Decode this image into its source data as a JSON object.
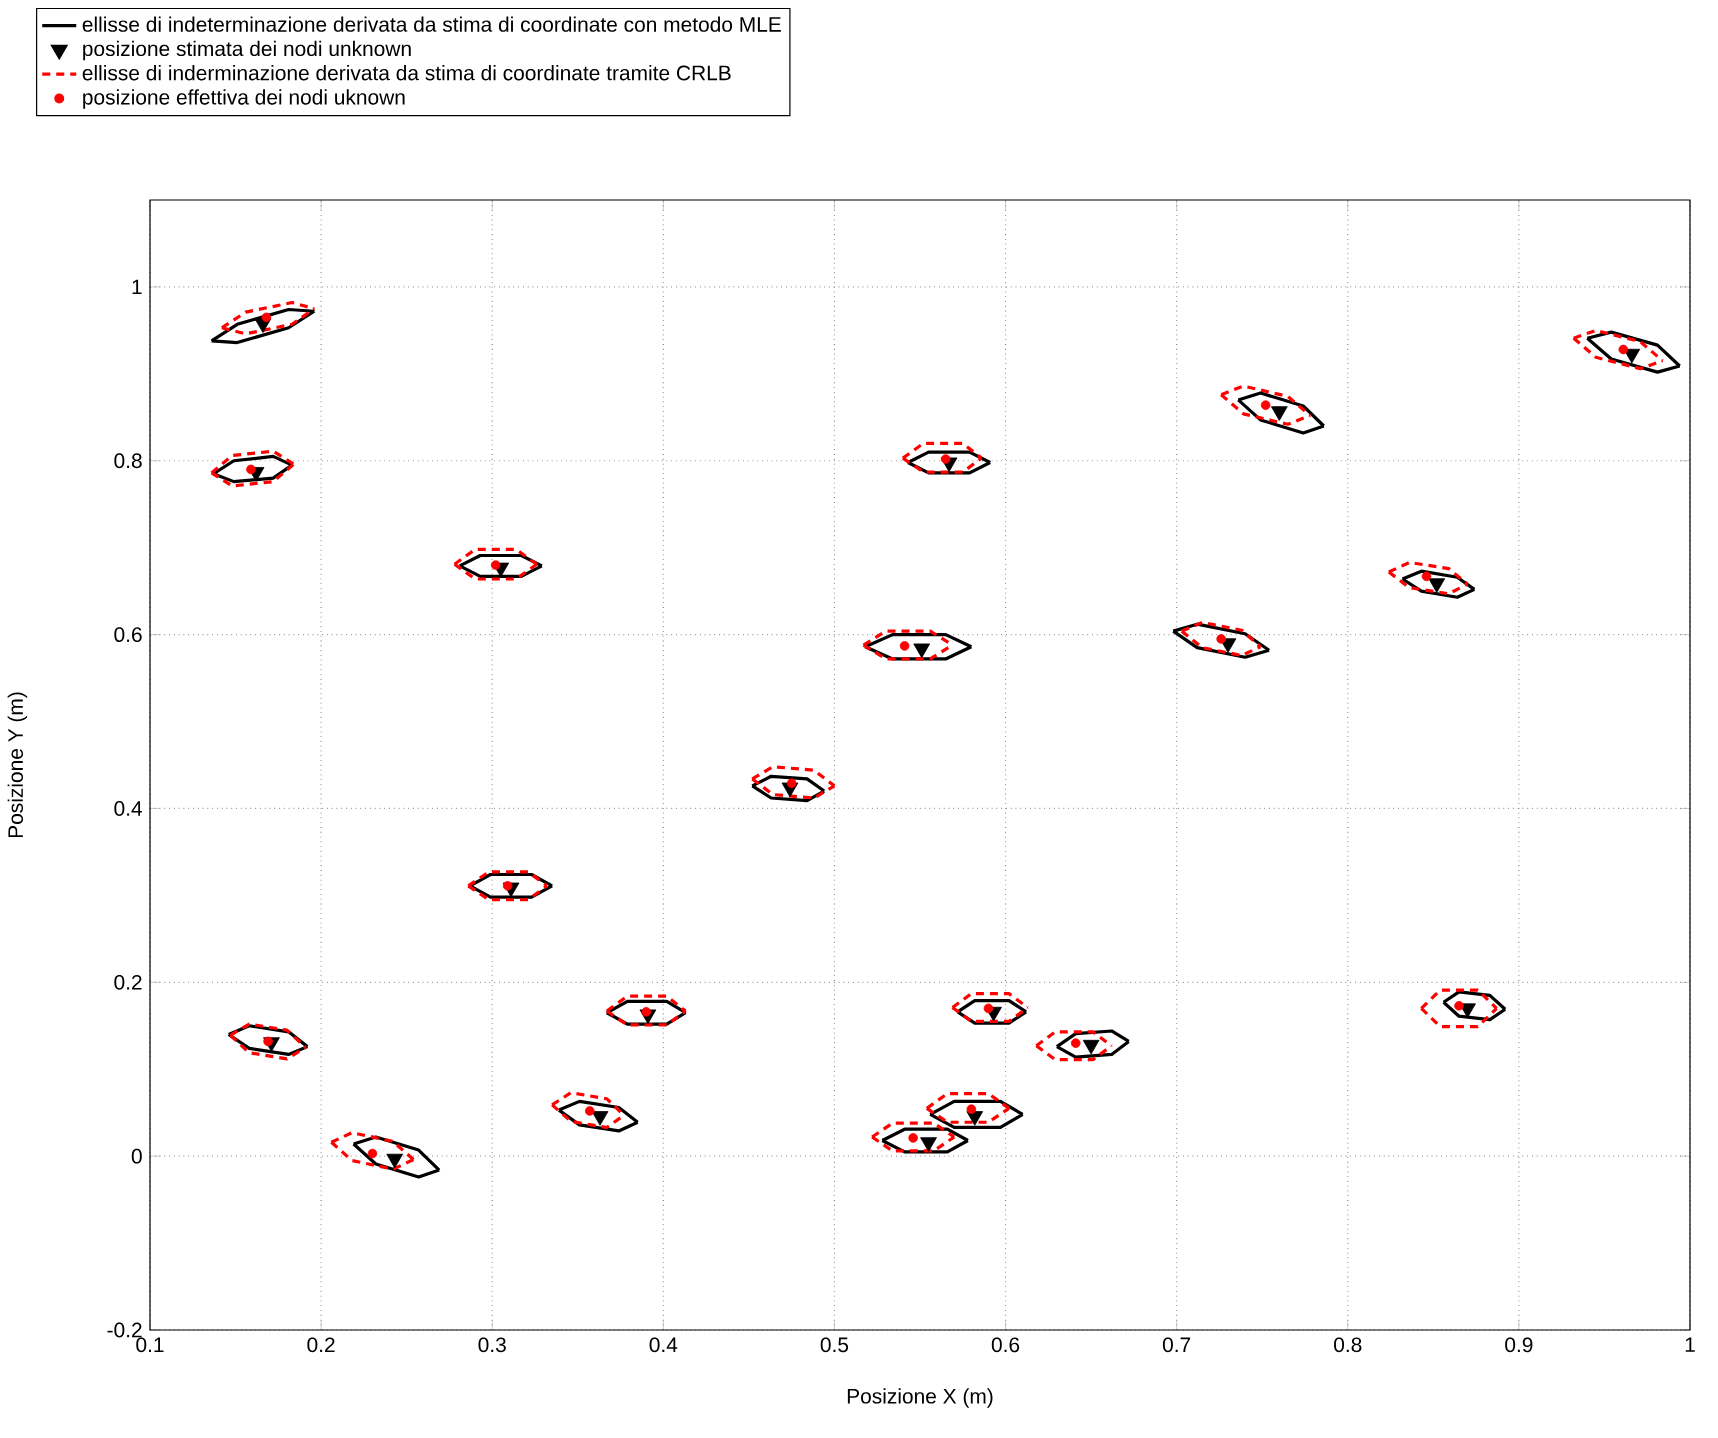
{
  "chart_data": {
    "type": "line",
    "xlabel": "Posizione X (m)",
    "ylabel": "Posizione Y (m)",
    "xlim": [
      0.1,
      1
    ],
    "ylim": [
      -0.2,
      1.1
    ],
    "xticks": [
      0.1,
      0.2,
      0.3,
      0.4,
      0.5,
      0.6,
      0.7,
      0.8,
      0.9,
      1
    ],
    "yticks": [
      -0.2,
      0,
      0.2,
      0.4,
      0.6,
      0.8,
      1
    ],
    "grid": true,
    "legend": "top left",
    "series": [
      {
        "name": "ellisse di indeterminazione derivata da stima di coordinate con metodo MLE",
        "color": "#000000",
        "line_style": "solid",
        "x": [
          0.136,
          0.151,
          0.181,
          0.196
        ],
        "values": [
          0.938,
          0.957,
          0.974,
          0.972
        ]
      },
      {
        "color": "#000000",
        "line_style": "solid",
        "x": [
          0.136,
          0.151,
          0.181,
          0.196
        ],
        "values": [
          0.938,
          0.936,
          0.953,
          0.972
        ]
      },
      {
        "color": "#000000",
        "line_style": "solid",
        "x": [
          0.137,
          0.149,
          0.172,
          0.183
        ],
        "values": [
          0.785,
          0.8,
          0.805,
          0.795
        ]
      },
      {
        "color": "#000000",
        "line_style": "solid",
        "x": [
          0.137,
          0.149,
          0.172,
          0.183
        ],
        "values": [
          0.785,
          0.776,
          0.78,
          0.795
        ]
      },
      {
        "color": "#000000",
        "line_style": "solid",
        "x": [
          0.281,
          0.293,
          0.317,
          0.329
        ],
        "values": [
          0.679,
          0.691,
          0.691,
          0.679
        ]
      },
      {
        "color": "#000000",
        "line_style": "solid",
        "x": [
          0.281,
          0.293,
          0.317,
          0.329
        ],
        "values": [
          0.679,
          0.667,
          0.667,
          0.679
        ]
      },
      {
        "color": "#000000",
        "line_style": "solid",
        "x": [
          0.543,
          0.555,
          0.579,
          0.591
        ],
        "values": [
          0.798,
          0.81,
          0.81,
          0.798
        ]
      },
      {
        "color": "#000000",
        "line_style": "solid",
        "x": [
          0.543,
          0.555,
          0.579,
          0.591
        ],
        "values": [
          0.798,
          0.786,
          0.786,
          0.798
        ]
      },
      {
        "color": "#000000",
        "line_style": "solid",
        "x": [
          0.518,
          0.534,
          0.565,
          0.58
        ],
        "values": [
          0.586,
          0.6,
          0.6,
          0.586
        ]
      },
      {
        "color": "#000000",
        "line_style": "solid",
        "x": [
          0.518,
          0.534,
          0.565,
          0.58
        ],
        "values": [
          0.586,
          0.572,
          0.572,
          0.586
        ]
      },
      {
        "color": "#000000",
        "line_style": "solid",
        "x": [
          0.736,
          0.749,
          0.774,
          0.786
        ],
        "values": [
          0.87,
          0.878,
          0.863,
          0.84
        ]
      },
      {
        "color": "#000000",
        "line_style": "solid",
        "x": [
          0.736,
          0.749,
          0.774,
          0.786
        ],
        "values": [
          0.87,
          0.847,
          0.832,
          0.84
        ]
      },
      {
        "color": "#000000",
        "line_style": "solid",
        "x": [
          0.94,
          0.954,
          0.981,
          0.994
        ],
        "values": [
          0.941,
          0.948,
          0.933,
          0.909
        ]
      },
      {
        "color": "#000000",
        "line_style": "solid",
        "x": [
          0.94,
          0.954,
          0.981,
          0.994
        ],
        "values": [
          0.941,
          0.917,
          0.902,
          0.909
        ]
      },
      {
        "color": "#000000",
        "line_style": "solid",
        "x": [
          0.832,
          0.843,
          0.864,
          0.874
        ],
        "values": [
          0.664,
          0.673,
          0.666,
          0.652
        ]
      },
      {
        "color": "#000000",
        "line_style": "solid",
        "x": [
          0.832,
          0.843,
          0.864,
          0.874
        ],
        "values": [
          0.664,
          0.65,
          0.643,
          0.652
        ]
      },
      {
        "color": "#000000",
        "line_style": "solid",
        "x": [
          0.698,
          0.712,
          0.74,
          0.754
        ],
        "values": [
          0.604,
          0.612,
          0.601,
          0.582
        ]
      },
      {
        "color": "#000000",
        "line_style": "solid",
        "x": [
          0.698,
          0.712,
          0.74,
          0.754
        ],
        "values": [
          0.604,
          0.585,
          0.574,
          0.582
        ]
      },
      {
        "color": "#000000",
        "line_style": "solid",
        "x": [
          0.452,
          0.463,
          0.484,
          0.494
        ],
        "values": [
          0.426,
          0.437,
          0.434,
          0.42
        ]
      },
      {
        "color": "#000000",
        "line_style": "solid",
        "x": [
          0.452,
          0.463,
          0.484,
          0.494
        ],
        "values": [
          0.426,
          0.412,
          0.409,
          0.42
        ]
      },
      {
        "color": "#000000",
        "line_style": "solid",
        "x": [
          0.287,
          0.299,
          0.323,
          0.335
        ],
        "values": [
          0.311,
          0.324,
          0.324,
          0.311
        ]
      },
      {
        "color": "#000000",
        "line_style": "solid",
        "x": [
          0.287,
          0.299,
          0.323,
          0.335
        ],
        "values": [
          0.311,
          0.298,
          0.298,
          0.311
        ]
      },
      {
        "color": "#000000",
        "line_style": "solid",
        "x": [
          0.146,
          0.158,
          0.181,
          0.192
        ],
        "values": [
          0.14,
          0.15,
          0.143,
          0.126
        ]
      },
      {
        "color": "#000000",
        "line_style": "solid",
        "x": [
          0.146,
          0.158,
          0.181,
          0.192
        ],
        "values": [
          0.14,
          0.124,
          0.117,
          0.126
        ]
      },
      {
        "color": "#000000",
        "line_style": "solid",
        "x": [
          0.367,
          0.379,
          0.402,
          0.413
        ],
        "values": [
          0.165,
          0.178,
          0.178,
          0.165
        ]
      },
      {
        "color": "#000000",
        "line_style": "solid",
        "x": [
          0.367,
          0.379,
          0.402,
          0.413
        ],
        "values": [
          0.165,
          0.152,
          0.152,
          0.165
        ]
      },
      {
        "color": "#000000",
        "line_style": "solid",
        "x": [
          0.339,
          0.351,
          0.374,
          0.385
        ],
        "values": [
          0.053,
          0.063,
          0.056,
          0.039
        ]
      },
      {
        "color": "#000000",
        "line_style": "solid",
        "x": [
          0.339,
          0.351,
          0.374,
          0.385
        ],
        "values": [
          0.053,
          0.036,
          0.029,
          0.039
        ]
      },
      {
        "color": "#000000",
        "line_style": "solid",
        "x": [
          0.219,
          0.232,
          0.257,
          0.269
        ],
        "values": [
          0.014,
          0.022,
          0.007,
          -0.016
        ]
      },
      {
        "color": "#000000",
        "line_style": "solid",
        "x": [
          0.219,
          0.232,
          0.257,
          0.269
        ],
        "values": [
          0.014,
          -0.009,
          -0.024,
          -0.016
        ]
      },
      {
        "color": "#000000",
        "line_style": "solid",
        "x": [
          0.528,
          0.541,
          0.566,
          0.578
        ],
        "values": [
          0.018,
          0.031,
          0.031,
          0.018
        ]
      },
      {
        "color": "#000000",
        "line_style": "solid",
        "x": [
          0.528,
          0.541,
          0.566,
          0.578
        ],
        "values": [
          0.018,
          0.005,
          0.005,
          0.018
        ]
      },
      {
        "color": "#000000",
        "line_style": "solid",
        "x": [
          0.556,
          0.57,
          0.597,
          0.61
        ],
        "values": [
          0.048,
          0.063,
          0.063,
          0.048
        ]
      },
      {
        "color": "#000000",
        "line_style": "solid",
        "x": [
          0.556,
          0.57,
          0.597,
          0.61
        ],
        "values": [
          0.048,
          0.033,
          0.033,
          0.048
        ]
      },
      {
        "color": "#000000",
        "line_style": "solid",
        "x": [
          0.572,
          0.582,
          0.602,
          0.612
        ],
        "values": [
          0.166,
          0.179,
          0.179,
          0.166
        ]
      },
      {
        "color": "#000000",
        "line_style": "solid",
        "x": [
          0.572,
          0.582,
          0.602,
          0.612
        ],
        "values": [
          0.166,
          0.153,
          0.153,
          0.166
        ]
      },
      {
        "color": "#000000",
        "line_style": "solid",
        "x": [
          0.63,
          0.641,
          0.662,
          0.672
        ],
        "values": [
          0.126,
          0.141,
          0.144,
          0.132
        ]
      },
      {
        "color": "#000000",
        "line_style": "solid",
        "x": [
          0.63,
          0.641,
          0.662,
          0.672
        ],
        "values": [
          0.126,
          0.114,
          0.117,
          0.132
        ]
      },
      {
        "color": "#000000",
        "line_style": "solid",
        "x": [
          0.856,
          0.865,
          0.883,
          0.892
        ],
        "values": [
          0.177,
          0.189,
          0.185,
          0.169
        ]
      },
      {
        "color": "#000000",
        "line_style": "solid",
        "x": [
          0.856,
          0.865,
          0.883,
          0.892
        ],
        "values": [
          0.177,
          0.161,
          0.157,
          0.169
        ]
      },
      {
        "name": "posizione stimata dei nodi unknown",
        "type": "scatter",
        "color": "#000000",
        "marker": "triangle",
        "x": [
          0.166,
          0.162,
          0.305,
          0.567,
          0.551,
          0.76,
          0.966,
          0.852,
          0.73,
          0.474,
          0.311,
          0.171,
          0.391,
          0.363,
          0.243,
          0.555,
          0.582,
          0.593,
          0.65,
          0.87
        ],
        "values": [
          0.958,
          0.787,
          0.677,
          0.798,
          0.584,
          0.857,
          0.923,
          0.659,
          0.59,
          0.424,
          0.309,
          0.131,
          0.163,
          0.046,
          -0.003,
          0.016,
          0.046,
          0.166,
          0.128,
          0.17
        ]
      },
      {
        "name": "ellisse di inderminazione derivata da stima di coordinate tramite CRLB",
        "color": "#ff0000",
        "line_style": "dashed",
        "x": [
          0.142,
          0.156,
          0.183,
          0.196
        ],
        "values": [
          0.953,
          0.971,
          0.982,
          0.975
        ]
      },
      {
        "color": "#ff0000",
        "line_style": "dashed",
        "x": [
          0.142,
          0.156,
          0.183,
          0.196
        ],
        "values": [
          0.953,
          0.946,
          0.957,
          0.975
        ]
      },
      {
        "color": "#ff0000",
        "line_style": "dashed",
        "x": [
          0.136,
          0.148,
          0.172,
          0.184
        ],
        "values": [
          0.786,
          0.806,
          0.811,
          0.796
        ]
      },
      {
        "color": "#ff0000",
        "line_style": "dashed",
        "x": [
          0.136,
          0.148,
          0.172,
          0.184
        ],
        "values": [
          0.786,
          0.771,
          0.776,
          0.796
        ]
      },
      {
        "color": "#ff0000",
        "line_style": "dashed",
        "x": [
          0.278,
          0.29,
          0.314,
          0.326
        ],
        "values": [
          0.681,
          0.698,
          0.698,
          0.681
        ]
      },
      {
        "color": "#ff0000",
        "line_style": "dashed",
        "x": [
          0.278,
          0.29,
          0.314,
          0.326
        ],
        "values": [
          0.681,
          0.664,
          0.664,
          0.681
        ]
      },
      {
        "color": "#ff0000",
        "line_style": "dashed",
        "x": [
          0.54,
          0.552,
          0.575,
          0.586
        ],
        "values": [
          0.803,
          0.82,
          0.82,
          0.803
        ]
      },
      {
        "color": "#ff0000",
        "line_style": "dashed",
        "x": [
          0.54,
          0.552,
          0.575,
          0.586
        ],
        "values": [
          0.803,
          0.787,
          0.787,
          0.803
        ]
      },
      {
        "color": "#ff0000",
        "line_style": "dashed",
        "x": [
          0.517,
          0.53,
          0.556,
          0.569
        ],
        "values": [
          0.588,
          0.604,
          0.604,
          0.588
        ]
      },
      {
        "color": "#ff0000",
        "line_style": "dashed",
        "x": [
          0.517,
          0.53,
          0.556,
          0.569
        ],
        "values": [
          0.588,
          0.572,
          0.572,
          0.588
        ]
      },
      {
        "color": "#ff0000",
        "line_style": "dashed",
        "x": [
          0.726,
          0.739,
          0.765,
          0.778
        ],
        "values": [
          0.876,
          0.886,
          0.874,
          0.852
        ]
      },
      {
        "color": "#ff0000",
        "line_style": "dashed",
        "x": [
          0.726,
          0.739,
          0.765,
          0.778
        ],
        "values": [
          0.876,
          0.854,
          0.842,
          0.852
        ]
      },
      {
        "color": "#ff0000",
        "line_style": "dashed",
        "x": [
          0.932,
          0.945,
          0.971,
          0.984
        ],
        "values": [
          0.941,
          0.95,
          0.937,
          0.915
        ]
      },
      {
        "color": "#ff0000",
        "line_style": "dashed",
        "x": [
          0.932,
          0.945,
          0.971,
          0.984
        ],
        "values": [
          0.941,
          0.919,
          0.906,
          0.915
        ]
      },
      {
        "color": "#ff0000",
        "line_style": "dashed",
        "x": [
          0.824,
          0.836,
          0.859,
          0.87
        ],
        "values": [
          0.672,
          0.683,
          0.676,
          0.658
        ]
      },
      {
        "color": "#ff0000",
        "line_style": "dashed",
        "x": [
          0.824,
          0.836,
          0.859,
          0.87
        ],
        "values": [
          0.672,
          0.654,
          0.647,
          0.658
        ]
      },
      {
        "color": "#ff0000",
        "line_style": "dashed",
        "x": [
          0.703,
          0.715,
          0.738,
          0.749
        ],
        "values": [
          0.604,
          0.614,
          0.605,
          0.586
        ]
      },
      {
        "color": "#ff0000",
        "line_style": "dashed",
        "x": [
          0.703,
          0.715,
          0.738,
          0.749
        ],
        "values": [
          0.604,
          0.585,
          0.576,
          0.586
        ]
      },
      {
        "color": "#ff0000",
        "line_style": "dashed",
        "x": [
          0.452,
          0.464,
          0.488,
          0.5
        ],
        "values": [
          0.434,
          0.448,
          0.444,
          0.426
        ]
      },
      {
        "color": "#ff0000",
        "line_style": "dashed",
        "x": [
          0.452,
          0.464,
          0.488,
          0.5
        ],
        "values": [
          0.434,
          0.416,
          0.412,
          0.426
        ]
      },
      {
        "color": "#ff0000",
        "line_style": "dashed",
        "x": [
          0.286,
          0.298,
          0.321,
          0.332
        ],
        "values": [
          0.311,
          0.327,
          0.327,
          0.311
        ]
      },
      {
        "color": "#ff0000",
        "line_style": "dashed",
        "x": [
          0.286,
          0.298,
          0.321,
          0.332
        ],
        "values": [
          0.311,
          0.295,
          0.295,
          0.311
        ]
      },
      {
        "color": "#ff0000",
        "line_style": "dashed",
        "x": [
          0.147,
          0.158,
          0.18,
          0.191
        ],
        "values": [
          0.139,
          0.152,
          0.145,
          0.125
        ]
      },
      {
        "color": "#ff0000",
        "line_style": "dashed",
        "x": [
          0.147,
          0.158,
          0.18,
          0.191
        ],
        "values": [
          0.139,
          0.119,
          0.112,
          0.125
        ]
      },
      {
        "color": "#ff0000",
        "line_style": "dashed",
        "x": [
          0.367,
          0.379,
          0.402,
          0.413
        ],
        "values": [
          0.167,
          0.184,
          0.184,
          0.167
        ]
      },
      {
        "color": "#ff0000",
        "line_style": "dashed",
        "x": [
          0.367,
          0.379,
          0.402,
          0.413
        ],
        "values": [
          0.167,
          0.151,
          0.151,
          0.167
        ]
      },
      {
        "color": "#ff0000",
        "line_style": "dashed",
        "x": [
          0.335,
          0.346,
          0.367,
          0.377
        ],
        "values": [
          0.059,
          0.073,
          0.066,
          0.047
        ]
      },
      {
        "color": "#ff0000",
        "line_style": "dashed",
        "x": [
          0.335,
          0.346,
          0.367,
          0.377
        ],
        "values": [
          0.059,
          0.04,
          0.033,
          0.047
        ]
      },
      {
        "color": "#ff0000",
        "line_style": "dashed",
        "x": [
          0.206,
          0.218,
          0.242,
          0.254
        ],
        "values": [
          0.016,
          0.027,
          0.017,
          -0.004
        ]
      },
      {
        "color": "#ff0000",
        "line_style": "dashed",
        "x": [
          0.206,
          0.218,
          0.242,
          0.254
        ],
        "values": [
          0.016,
          -0.005,
          -0.015,
          -0.004
        ]
      },
      {
        "color": "#ff0000",
        "line_style": "dashed",
        "x": [
          0.522,
          0.534,
          0.558,
          0.57
        ],
        "values": [
          0.022,
          0.038,
          0.038,
          0.022
        ]
      },
      {
        "color": "#ff0000",
        "line_style": "dashed",
        "x": [
          0.522,
          0.534,
          0.558,
          0.57
        ],
        "values": [
          0.022,
          0.006,
          0.006,
          0.022
        ]
      },
      {
        "color": "#ff0000",
        "line_style": "dashed",
        "x": [
          0.554,
          0.566,
          0.59,
          0.602
        ],
        "values": [
          0.055,
          0.072,
          0.072,
          0.055
        ]
      },
      {
        "color": "#ff0000",
        "line_style": "dashed",
        "x": [
          0.554,
          0.566,
          0.59,
          0.602
        ],
        "values": [
          0.055,
          0.039,
          0.039,
          0.055
        ]
      },
      {
        "color": "#ff0000",
        "line_style": "dashed",
        "x": [
          0.569,
          0.58,
          0.602,
          0.613
        ],
        "values": [
          0.171,
          0.187,
          0.187,
          0.171
        ]
      },
      {
        "color": "#ff0000",
        "line_style": "dashed",
        "x": [
          0.569,
          0.58,
          0.602,
          0.613
        ],
        "values": [
          0.171,
          0.155,
          0.155,
          0.171
        ]
      },
      {
        "color": "#ff0000",
        "line_style": "dashed",
        "x": [
          0.618,
          0.629,
          0.651,
          0.662
        ],
        "values": [
          0.127,
          0.143,
          0.143,
          0.127
        ]
      },
      {
        "color": "#ff0000",
        "line_style": "dashed",
        "x": [
          0.618,
          0.629,
          0.651,
          0.662
        ],
        "values": [
          0.127,
          0.111,
          0.111,
          0.127
        ]
      },
      {
        "color": "#ff0000",
        "line_style": "dashed",
        "x": [
          0.843,
          0.854,
          0.876,
          0.887
        ],
        "values": [
          0.17,
          0.191,
          0.191,
          0.17
        ]
      },
      {
        "color": "#ff0000",
        "line_style": "dashed",
        "x": [
          0.843,
          0.854,
          0.876,
          0.887
        ],
        "values": [
          0.17,
          0.149,
          0.149,
          0.17
        ]
      },
      {
        "name": "posizione effettiva dei nodi uknown",
        "type": "scatter",
        "color": "#ff0000",
        "marker": "circle",
        "x": [
          0.168,
          0.159,
          0.302,
          0.565,
          0.541,
          0.752,
          0.961,
          0.846,
          0.726,
          0.475,
          0.309,
          0.169,
          0.39,
          0.357,
          0.23,
          0.546,
          0.58,
          0.59,
          0.641,
          0.865
        ],
        "values": [
          0.965,
          0.79,
          0.68,
          0.802,
          0.587,
          0.864,
          0.928,
          0.667,
          0.595,
          0.429,
          0.311,
          0.132,
          0.166,
          0.052,
          0.003,
          0.021,
          0.054,
          0.17,
          0.13,
          0.173
        ]
      }
    ]
  }
}
